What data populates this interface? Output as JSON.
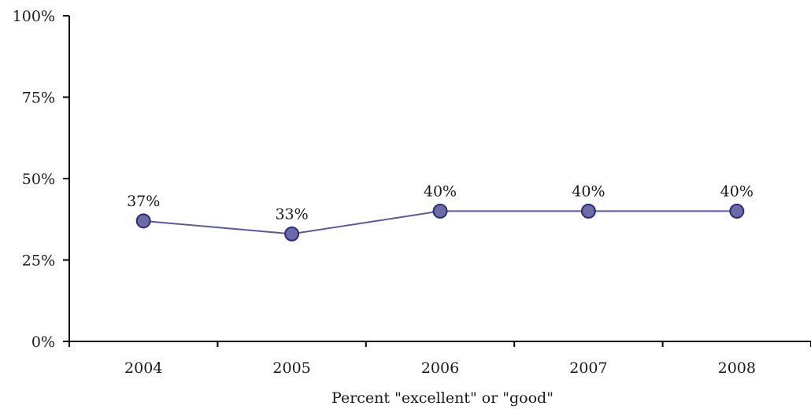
{
  "chart_data": {
    "type": "line",
    "categories": [
      "2004",
      "2005",
      "2006",
      "2007",
      "2008"
    ],
    "series": [
      {
        "values": [
          37,
          33,
          40,
          40,
          40
        ]
      }
    ],
    "data_labels": [
      "37%",
      "33%",
      "40%",
      "40%",
      "40%"
    ],
    "y_ticks": [
      0,
      25,
      50,
      75,
      100
    ],
    "y_tick_labels": [
      "0%",
      "25%",
      "50%",
      "75%",
      "100%"
    ],
    "ylim": [
      0,
      100
    ],
    "xlabel": "Percent \"excellent\" or \"good\"",
    "ylabel": "",
    "title": "",
    "grid": false,
    "legend": "none",
    "colors": {
      "line": "#5a5a96",
      "marker_fill": "#6b6ba8",
      "marker_stroke": "#2c2c78"
    }
  }
}
